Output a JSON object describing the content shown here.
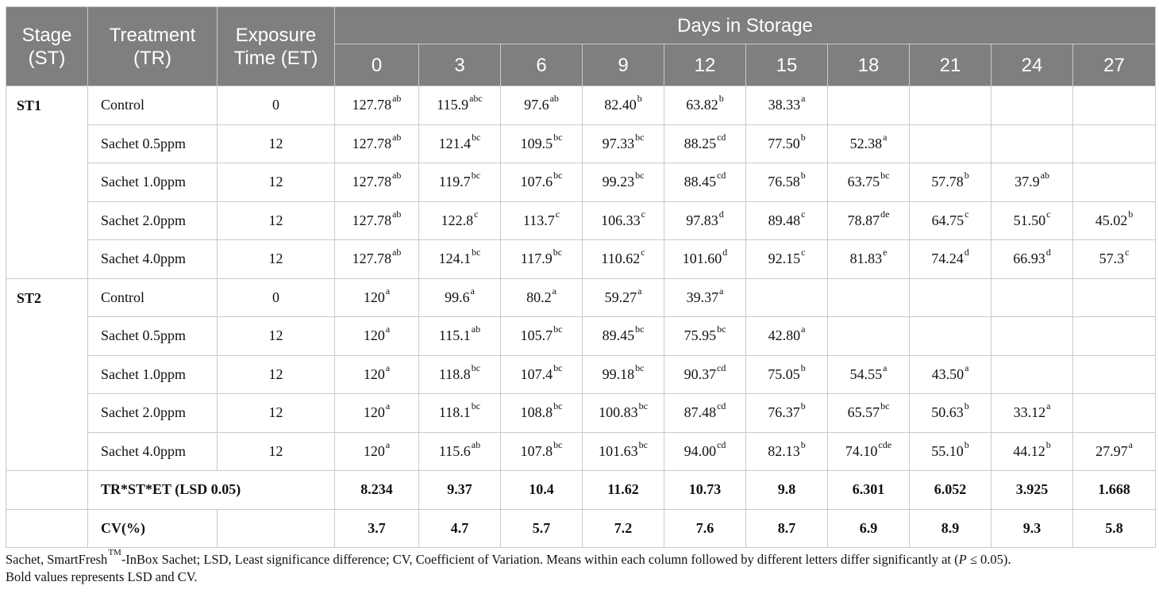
{
  "header": {
    "stage": [
      "Stage",
      "(ST)"
    ],
    "treatment": [
      "Treatment",
      "(TR)"
    ],
    "exposure": [
      "Exposure",
      "Time (ET)"
    ],
    "days_title": "Days in Storage",
    "days": [
      "0",
      "3",
      "6",
      "9",
      "12",
      "15",
      "18",
      "21",
      "24",
      "27"
    ]
  },
  "groups": [
    {
      "stage": "ST1",
      "rows": [
        {
          "treatment": "Control",
          "et": "0",
          "cells": [
            [
              "127.78",
              "ab"
            ],
            [
              "115.9",
              "abc"
            ],
            [
              "97.6",
              "ab"
            ],
            [
              "82.40",
              "b"
            ],
            [
              "63.82",
              "b"
            ],
            [
              "38.33",
              "a"
            ],
            [
              "",
              ""
            ],
            [
              "",
              ""
            ],
            [
              "",
              ""
            ],
            [
              "",
              ""
            ]
          ]
        },
        {
          "treatment": "Sachet 0.5ppm",
          "et": "12",
          "cells": [
            [
              "127.78",
              "ab"
            ],
            [
              "121.4",
              "bc"
            ],
            [
              "109.5",
              "bc"
            ],
            [
              "97.33",
              "bc"
            ],
            [
              "88.25",
              "cd"
            ],
            [
              "77.50",
              "b"
            ],
            [
              "52.38",
              "a"
            ],
            [
              "",
              ""
            ],
            [
              "",
              ""
            ],
            [
              "",
              ""
            ]
          ]
        },
        {
          "treatment": "Sachet 1.0ppm",
          "et": "12",
          "cells": [
            [
              "127.78",
              "ab"
            ],
            [
              "119.7",
              "bc"
            ],
            [
              "107.6",
              "bc"
            ],
            [
              "99.23",
              "bc"
            ],
            [
              "88.45",
              "cd"
            ],
            [
              "76.58",
              "b"
            ],
            [
              "63.75",
              "bc"
            ],
            [
              "57.78",
              "b"
            ],
            [
              "37.9",
              "ab"
            ],
            [
              "",
              ""
            ]
          ]
        },
        {
          "treatment": "Sachet 2.0ppm",
          "et": "12",
          "cells": [
            [
              "127.78",
              "ab"
            ],
            [
              "122.8",
              "c"
            ],
            [
              "113.7",
              "c"
            ],
            [
              "106.33",
              "c"
            ],
            [
              "97.83",
              "d"
            ],
            [
              "89.48",
              "c"
            ],
            [
              "78.87",
              "de"
            ],
            [
              "64.75",
              "c"
            ],
            [
              "51.50",
              "c"
            ],
            [
              "45.02",
              "b"
            ]
          ]
        },
        {
          "treatment": "Sachet 4.0ppm",
          "et": "12",
          "cells": [
            [
              "127.78",
              "ab"
            ],
            [
              "124.1",
              "bc"
            ],
            [
              "117.9",
              "bc"
            ],
            [
              "110.62",
              "c"
            ],
            [
              "101.60",
              "d"
            ],
            [
              "92.15",
              "c"
            ],
            [
              "81.83",
              "e"
            ],
            [
              "74.24",
              "d"
            ],
            [
              "66.93",
              "d"
            ],
            [
              "57.3",
              "c"
            ]
          ]
        }
      ]
    },
    {
      "stage": "ST2",
      "rows": [
        {
          "treatment": "Control",
          "et": "0",
          "cells": [
            [
              "120",
              "a"
            ],
            [
              "99.6",
              "a"
            ],
            [
              "80.2",
              "a"
            ],
            [
              "59.27",
              "a"
            ],
            [
              "39.37",
              "a"
            ],
            [
              "",
              ""
            ],
            [
              "",
              ""
            ],
            [
              "",
              ""
            ],
            [
              "",
              ""
            ],
            [
              "",
              ""
            ]
          ]
        },
        {
          "treatment": "Sachet 0.5ppm",
          "et": "12",
          "cells": [
            [
              "120",
              "a"
            ],
            [
              "115.1",
              "ab"
            ],
            [
              "105.7",
              "bc"
            ],
            [
              "89.45",
              "bc"
            ],
            [
              "75.95",
              "bc"
            ],
            [
              "42.80",
              "a"
            ],
            [
              "",
              ""
            ],
            [
              "",
              ""
            ],
            [
              "",
              ""
            ],
            [
              "",
              ""
            ]
          ]
        },
        {
          "treatment": "Sachet 1.0ppm",
          "et": "12",
          "cells": [
            [
              "120",
              "a"
            ],
            [
              "118.8",
              "bc"
            ],
            [
              "107.4",
              "bc"
            ],
            [
              "99.18",
              "bc"
            ],
            [
              "90.37",
              "cd"
            ],
            [
              "75.05",
              "b"
            ],
            [
              "54.55",
              "a"
            ],
            [
              "43.50",
              "a"
            ],
            [
              "",
              ""
            ],
            [
              "",
              ""
            ]
          ]
        },
        {
          "treatment": "Sachet 2.0ppm",
          "et": "12",
          "cells": [
            [
              "120",
              "a"
            ],
            [
              "118.1",
              "bc"
            ],
            [
              "108.8",
              "bc"
            ],
            [
              "100.83",
              "bc"
            ],
            [
              "87.48",
              "cd"
            ],
            [
              "76.37",
              "b"
            ],
            [
              "65.57",
              "bc"
            ],
            [
              "50.63",
              "b"
            ],
            [
              "33.12",
              "a"
            ],
            [
              "",
              ""
            ]
          ]
        },
        {
          "treatment": "Sachet 4.0ppm",
          "et": "12",
          "cells": [
            [
              "120",
              "a"
            ],
            [
              "115.6",
              "ab"
            ],
            [
              "107.8",
              "bc"
            ],
            [
              "101.63",
              "bc"
            ],
            [
              "94.00",
              "cd"
            ],
            [
              "82.13",
              "b"
            ],
            [
              "74.10",
              "cde"
            ],
            [
              "55.10",
              "b"
            ],
            [
              "44.12",
              "b"
            ],
            [
              "27.97",
              "a"
            ]
          ]
        }
      ]
    }
  ],
  "lsd": {
    "label": "TR*ST*ET (LSD 0.05)",
    "values": [
      "8.234",
      "9.37",
      "10.4",
      "11.62",
      "10.73",
      "9.8",
      "6.301",
      "6.052",
      "3.925",
      "1.668"
    ]
  },
  "cv": {
    "label": "CV(%)",
    "values": [
      "3.7",
      "4.7",
      "5.7",
      "7.2",
      "7.6",
      "8.7",
      "6.9",
      "8.9",
      "9.3",
      "5.8"
    ]
  },
  "footnote": {
    "p1": "Sachet, SmartFresh",
    "tm": "TM",
    "p2": "-InBox Sachet; LSD, Least significance difference; CV, Coefficient of Variation. Means within each column followed by different letters differ significantly at (",
    "p_italic": "P",
    "p3": " ≤ 0.05).",
    "line2": "Bold values represents LSD and CV."
  }
}
